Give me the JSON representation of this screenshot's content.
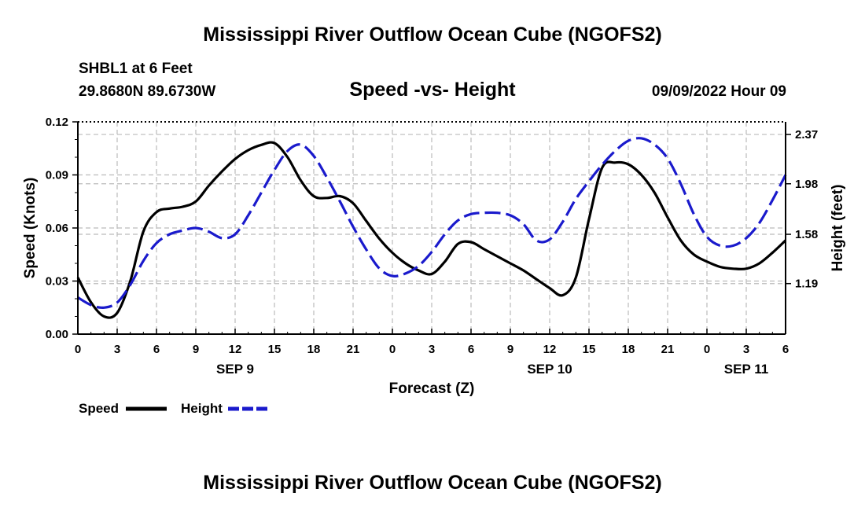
{
  "title": "Mississippi River Outflow Ocean Cube (NGOFS2)",
  "station": "SHBL1 at 6 Feet",
  "coordinates": "29.8680N  89.6730W",
  "date_label": "09/09/2022 Hour 09",
  "footer_title": "Mississippi River Outflow Ocean Cube (NGOFS2)",
  "colors": {
    "speed": "#000000",
    "height": "#1a1acc",
    "grid": "#bbbbbb"
  },
  "chart_data": {
    "type": "line",
    "title": "Speed -vs- Height",
    "xlabel": "Forecast (Z)",
    "ylabel": "Speed (Knots)",
    "y2label": "Height (feet)",
    "x_unit": "forecast hour (0 = Sep 9 00Z)",
    "xlim": [
      0,
      54
    ],
    "ylim": [
      0,
      0.12
    ],
    "y2lim": [
      0.79,
      2.47
    ],
    "x_ticks": [
      0,
      3,
      6,
      9,
      12,
      15,
      18,
      21,
      24,
      27,
      30,
      33,
      36,
      39,
      42,
      45,
      48,
      51,
      54
    ],
    "x_tick_labels": [
      "0",
      "3",
      "6",
      "9",
      "12",
      "15",
      "18",
      "21",
      "0",
      "3",
      "6",
      "9",
      "12",
      "15",
      "18",
      "21",
      "0",
      "3",
      "6"
    ],
    "day_labels": [
      {
        "x": 12,
        "label": "SEP 9"
      },
      {
        "x": 36,
        "label": "SEP 10"
      },
      {
        "x": 51,
        "label": "SEP 11"
      }
    ],
    "y_ticks": [
      0.0,
      0.03,
      0.06,
      0.09,
      0.12
    ],
    "y_tick_labels": [
      "0.00",
      "0.03",
      "0.06",
      "0.09",
      "0.12"
    ],
    "y2_ticks": [
      1.19,
      1.58,
      1.98,
      2.37
    ],
    "y2_tick_labels": [
      "1.19",
      "1.58",
      "1.98",
      "2.37"
    ],
    "series": [
      {
        "name": "Speed",
        "axis": "left",
        "style": "solid",
        "x": [
          0,
          1,
          2,
          3,
          4,
          5,
          6,
          7,
          8,
          9,
          10,
          11,
          12,
          13,
          14,
          15,
          16,
          17,
          18,
          19,
          20,
          21,
          22,
          23,
          24,
          25,
          26,
          27,
          28,
          29,
          30,
          31,
          32,
          33,
          34,
          35,
          36,
          37,
          38,
          39,
          40,
          41,
          42,
          43,
          44,
          45,
          46,
          47,
          48,
          49,
          50,
          51,
          52,
          53,
          54
        ],
        "values": [
          0.032,
          0.018,
          0.01,
          0.012,
          0.03,
          0.058,
          0.069,
          0.071,
          0.072,
          0.075,
          0.084,
          0.092,
          0.099,
          0.104,
          0.107,
          0.108,
          0.1,
          0.087,
          0.078,
          0.077,
          0.078,
          0.074,
          0.064,
          0.054,
          0.046,
          0.04,
          0.036,
          0.034,
          0.041,
          0.051,
          0.052,
          0.048,
          0.044,
          0.04,
          0.036,
          0.031,
          0.026,
          0.022,
          0.032,
          0.065,
          0.094,
          0.097,
          0.096,
          0.09,
          0.08,
          0.066,
          0.053,
          0.045,
          0.041,
          0.038,
          0.037,
          0.037,
          0.04,
          0.046,
          0.053
        ]
      },
      {
        "name": "Height",
        "axis": "right",
        "style": "dashed",
        "x": [
          0,
          1,
          2,
          3,
          4,
          5,
          6,
          7,
          8,
          9,
          10,
          11,
          12,
          13,
          14,
          15,
          16,
          17,
          18,
          19,
          20,
          21,
          22,
          23,
          24,
          25,
          26,
          27,
          28,
          29,
          30,
          31,
          32,
          33,
          34,
          35,
          36,
          37,
          38,
          39,
          40,
          41,
          42,
          43,
          44,
          45,
          46,
          47,
          48,
          49,
          50,
          51,
          52,
          53,
          54
        ],
        "values": [
          1.08,
          1.02,
          1.0,
          1.04,
          1.18,
          1.37,
          1.51,
          1.58,
          1.61,
          1.63,
          1.6,
          1.55,
          1.58,
          1.73,
          1.91,
          2.09,
          2.24,
          2.29,
          2.2,
          2.03,
          1.84,
          1.64,
          1.46,
          1.31,
          1.25,
          1.27,
          1.33,
          1.44,
          1.58,
          1.69,
          1.74,
          1.75,
          1.75,
          1.73,
          1.66,
          1.53,
          1.54,
          1.68,
          1.86,
          2.0,
          2.13,
          2.24,
          2.32,
          2.34,
          2.29,
          2.18,
          1.98,
          1.74,
          1.56,
          1.49,
          1.49,
          1.55,
          1.67,
          1.85,
          2.05
        ]
      }
    ]
  }
}
